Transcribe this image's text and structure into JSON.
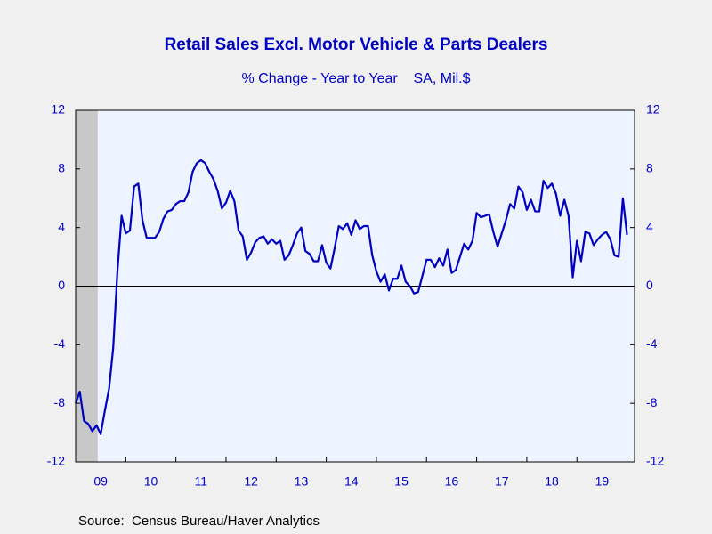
{
  "chart_data": {
    "type": "line",
    "title": "Retail Sales Excl. Motor Vehicle & Parts Dealers",
    "subtitle": "% Change - Year to Year    SA, Mil.$",
    "source": "Source:  Census Bureau/Haver Analytics",
    "x": [
      2009.0,
      2009.083,
      2009.167,
      2009.25,
      2009.333,
      2009.417,
      2009.5,
      2009.583,
      2009.667,
      2009.75,
      2009.833,
      2009.917,
      2010.0,
      2010.083,
      2010.167,
      2010.25,
      2010.333,
      2010.417,
      2010.5,
      2010.583,
      2010.667,
      2010.75,
      2010.833,
      2010.917,
      2011.0,
      2011.083,
      2011.167,
      2011.25,
      2011.333,
      2011.417,
      2011.5,
      2011.583,
      2011.667,
      2011.75,
      2011.833,
      2011.917,
      2012.0,
      2012.083,
      2012.167,
      2012.25,
      2012.333,
      2012.417,
      2012.5,
      2012.583,
      2012.667,
      2012.75,
      2012.833,
      2012.917,
      2013.0,
      2013.083,
      2013.167,
      2013.25,
      2013.333,
      2013.417,
      2013.5,
      2013.583,
      2013.667,
      2013.75,
      2013.833,
      2013.917,
      2014.0,
      2014.083,
      2014.167,
      2014.25,
      2014.333,
      2014.417,
      2014.5,
      2014.583,
      2014.667,
      2014.75,
      2014.833,
      2014.917,
      2015.0,
      2015.083,
      2015.167,
      2015.25,
      2015.333,
      2015.417,
      2015.5,
      2015.583,
      2015.667,
      2015.75,
      2015.833,
      2015.917,
      2016.0,
      2016.083,
      2016.167,
      2016.25,
      2016.333,
      2016.417,
      2016.5,
      2016.583,
      2016.667,
      2016.75,
      2016.833,
      2016.917,
      2017.0,
      2017.083,
      2017.167,
      2017.25,
      2017.333,
      2017.417,
      2017.5,
      2017.583,
      2017.667,
      2017.75,
      2017.833,
      2017.917,
      2018.0,
      2018.083,
      2018.167,
      2018.25,
      2018.333,
      2018.417,
      2018.5,
      2018.583,
      2018.667,
      2018.75,
      2018.833,
      2018.917,
      2019.0,
      2019.083,
      2019.167,
      2019.25,
      2019.333,
      2019.417,
      2019.5,
      2019.583,
      2019.667,
      2019.75,
      2019.833,
      2019.917,
      2020.0
    ],
    "series": [
      {
        "color": "#0000c0",
        "values": [
          -8.0,
          -7.2,
          -9.2,
          -9.4,
          -9.9,
          -9.5,
          -10.1,
          -8.5,
          -7.0,
          -4.2,
          1.0,
          4.8,
          3.6,
          3.8,
          6.8,
          7.0,
          4.5,
          3.3,
          3.3,
          3.3,
          3.7,
          4.6,
          5.1,
          5.2,
          5.6,
          5.8,
          5.8,
          6.4,
          7.8,
          8.4,
          8.6,
          8.4,
          7.8,
          7.3,
          6.5,
          5.3,
          5.7,
          6.5,
          5.8,
          3.8,
          3.4,
          1.8,
          2.3,
          3.0,
          3.3,
          3.4,
          2.9,
          3.2,
          2.9,
          3.1,
          1.8,
          2.1,
          2.8,
          3.6,
          4.0,
          2.4,
          2.2,
          1.7,
          1.7,
          2.8,
          1.6,
          1.2,
          2.6,
          4.1,
          3.9,
          4.3,
          3.5,
          4.5,
          3.9,
          4.1,
          4.1,
          2.1,
          1.0,
          0.3,
          0.8,
          -0.3,
          0.5,
          0.5,
          1.4,
          0.3,
          0.0,
          -0.5,
          -0.4,
          0.7,
          1.8,
          1.8,
          1.3,
          1.9,
          1.4,
          2.5,
          0.9,
          1.1,
          2.0,
          2.9,
          2.5,
          3.1,
          5.0,
          4.7,
          4.8,
          4.9,
          3.7,
          2.7,
          3.6,
          4.5,
          5.6,
          5.3,
          6.8,
          6.4,
          5.2,
          5.9,
          5.1,
          5.1,
          7.2,
          6.7,
          7.0,
          6.3,
          4.8,
          5.9,
          4.8,
          0.6,
          3.1,
          1.7,
          3.7,
          3.6,
          2.8,
          3.2,
          3.5,
          3.7,
          3.2,
          2.1,
          2.0,
          6.0,
          3.5
        ]
      }
    ],
    "xlim": [
      2009.0,
      2020.15
    ],
    "xticks": [
      {
        "value": 2009.5,
        "label": "09"
      },
      {
        "value": 2010.5,
        "label": "10"
      },
      {
        "value": 2011.5,
        "label": "11"
      },
      {
        "value": 2012.5,
        "label": "12"
      },
      {
        "value": 2013.5,
        "label": "13"
      },
      {
        "value": 2014.5,
        "label": "14"
      },
      {
        "value": 2015.5,
        "label": "15"
      },
      {
        "value": 2016.5,
        "label": "16"
      },
      {
        "value": 2017.5,
        "label": "17"
      },
      {
        "value": 2018.5,
        "label": "18"
      },
      {
        "value": 2019.5,
        "label": "19"
      }
    ],
    "ylim": [
      -12,
      12
    ],
    "yticks": [
      -12,
      -8,
      -4,
      0,
      4,
      8,
      12
    ],
    "shade_x": [
      2009.0,
      2009.44
    ],
    "zero_line": true
  }
}
